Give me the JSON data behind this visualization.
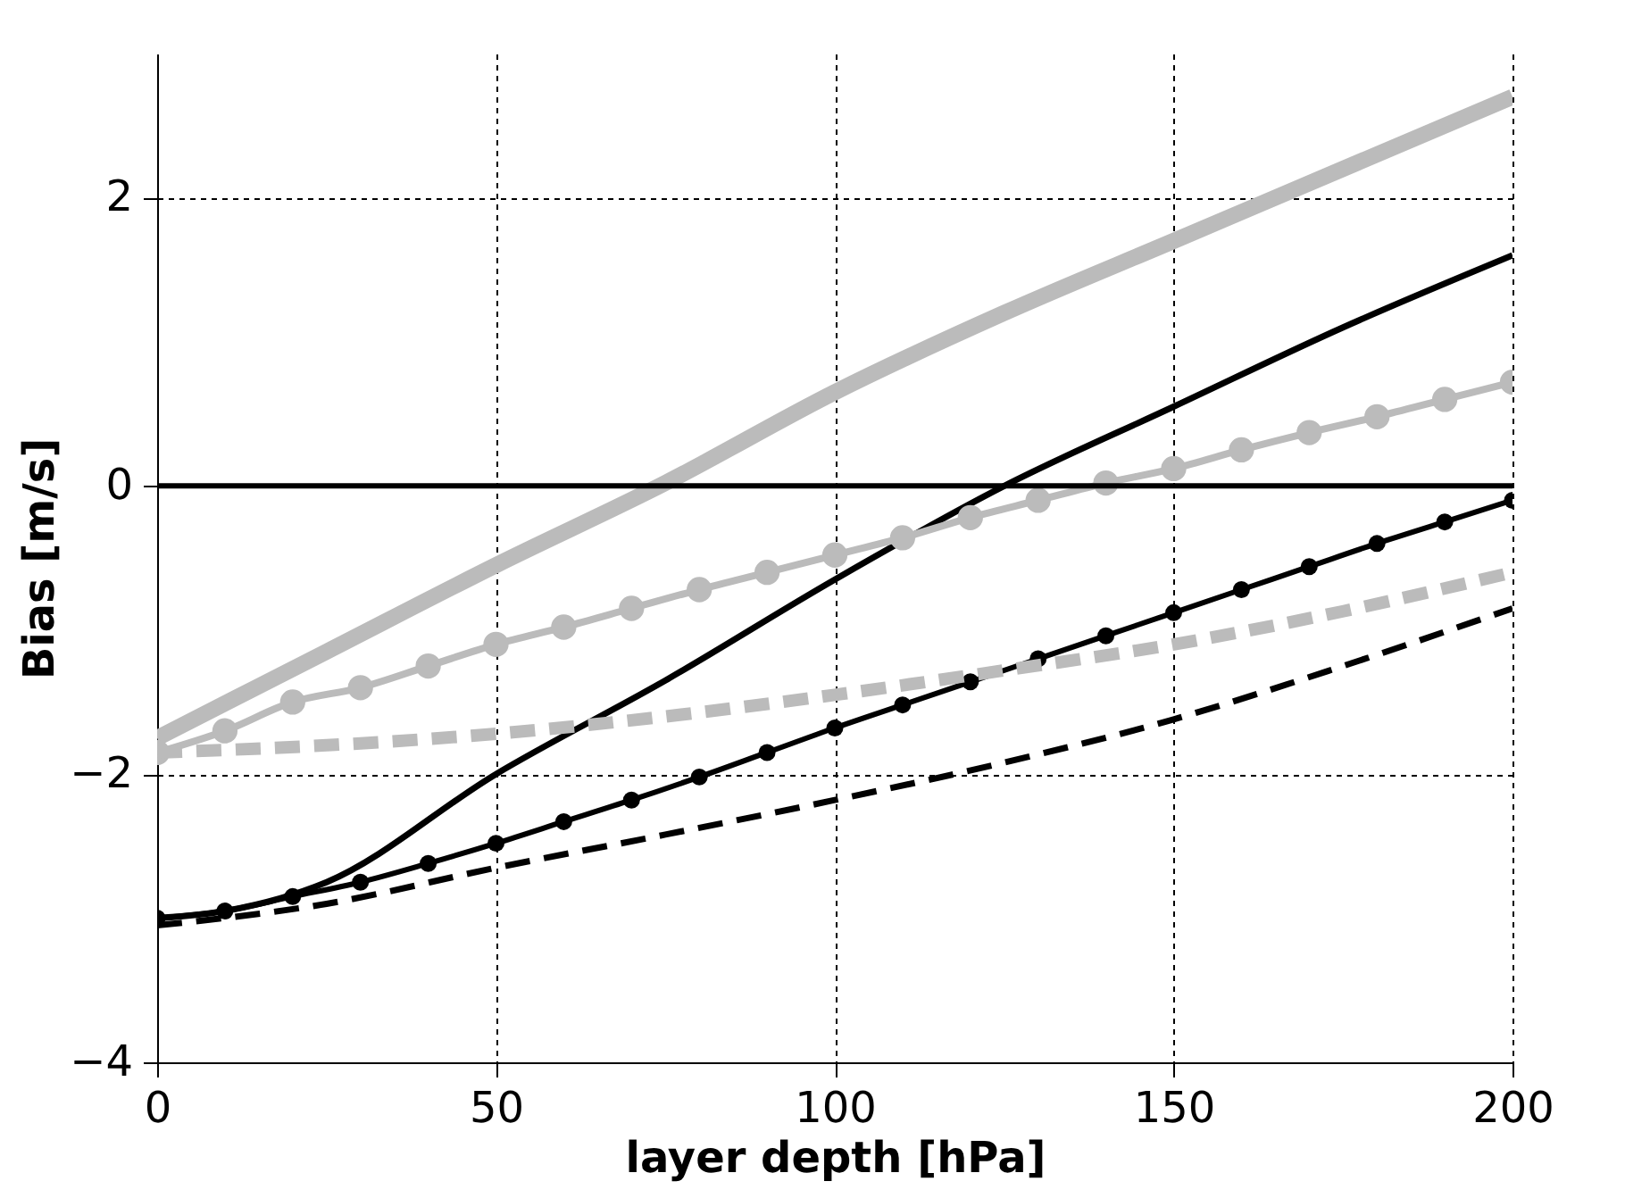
{
  "chart_data": {
    "type": "line",
    "xlabel": "layer depth [hPa]",
    "ylabel": "Bias [m/s]",
    "xlim": [
      0,
      200
    ],
    "ylim": [
      -4,
      3
    ],
    "xticks": [
      0,
      50,
      100,
      150,
      200
    ],
    "yticks": [
      -4,
      -2,
      0,
      2
    ],
    "grid": true,
    "ref_lines": [
      {
        "axis": "y",
        "value": 0,
        "color": "#000000",
        "line_style": "solid"
      }
    ],
    "series": [
      {
        "color": "#bbbbbb",
        "line_style": "solid",
        "marker": "none",
        "x": [
          0,
          25,
          50,
          75,
          100,
          125,
          150,
          175,
          200
        ],
        "values": [
          -1.75,
          -1.15,
          -0.55,
          0.02,
          0.65,
          1.2,
          1.7,
          2.2,
          2.7
        ]
      },
      {
        "color": "#000000",
        "line_style": "solid",
        "marker": "none",
        "x": [
          0,
          10,
          25,
          50,
          75,
          100,
          125,
          150,
          175,
          200
        ],
        "values": [
          -3.0,
          -2.95,
          -2.75,
          -2.0,
          -1.35,
          -0.65,
          0.0,
          0.55,
          1.1,
          1.6
        ]
      },
      {
        "color": "#bbbbbb",
        "line_style": "solid",
        "marker": "circle",
        "x": [
          0,
          10,
          20,
          30,
          40,
          50,
          60,
          70,
          80,
          90,
          100,
          110,
          120,
          130,
          140,
          150,
          160,
          170,
          180,
          190,
          200
        ],
        "values": [
          -1.85,
          -1.7,
          -1.5,
          -1.4,
          -1.25,
          -1.1,
          -0.98,
          -0.85,
          -0.72,
          -0.6,
          -0.48,
          -0.36,
          -0.22,
          -0.1,
          0.02,
          0.12,
          0.25,
          0.37,
          0.48,
          0.6,
          0.72
        ]
      },
      {
        "color": "#000000",
        "line_style": "solid",
        "marker": "circle",
        "x": [
          0,
          10,
          20,
          30,
          40,
          50,
          60,
          70,
          80,
          90,
          100,
          110,
          120,
          130,
          140,
          150,
          160,
          170,
          180,
          190,
          200
        ],
        "values": [
          -3.0,
          -2.95,
          -2.85,
          -2.75,
          -2.62,
          -2.48,
          -2.33,
          -2.18,
          -2.02,
          -1.85,
          -1.68,
          -1.52,
          -1.36,
          -1.2,
          -1.04,
          -0.88,
          -0.72,
          -0.56,
          -0.4,
          -0.25,
          -0.1
        ]
      },
      {
        "color": "#bbbbbb",
        "line_style": "dashed",
        "marker": "none",
        "x": [
          0,
          25,
          50,
          75,
          100,
          125,
          150,
          175,
          200
        ],
        "values": [
          -1.85,
          -1.8,
          -1.72,
          -1.6,
          -1.45,
          -1.28,
          -1.1,
          -0.87,
          -0.6
        ]
      },
      {
        "color": "#000000",
        "line_style": "dashed",
        "marker": "none",
        "x": [
          0,
          25,
          50,
          75,
          100,
          125,
          150,
          175,
          200
        ],
        "values": [
          -3.05,
          -2.9,
          -2.65,
          -2.42,
          -2.18,
          -1.92,
          -1.62,
          -1.25,
          -0.85
        ]
      }
    ]
  }
}
